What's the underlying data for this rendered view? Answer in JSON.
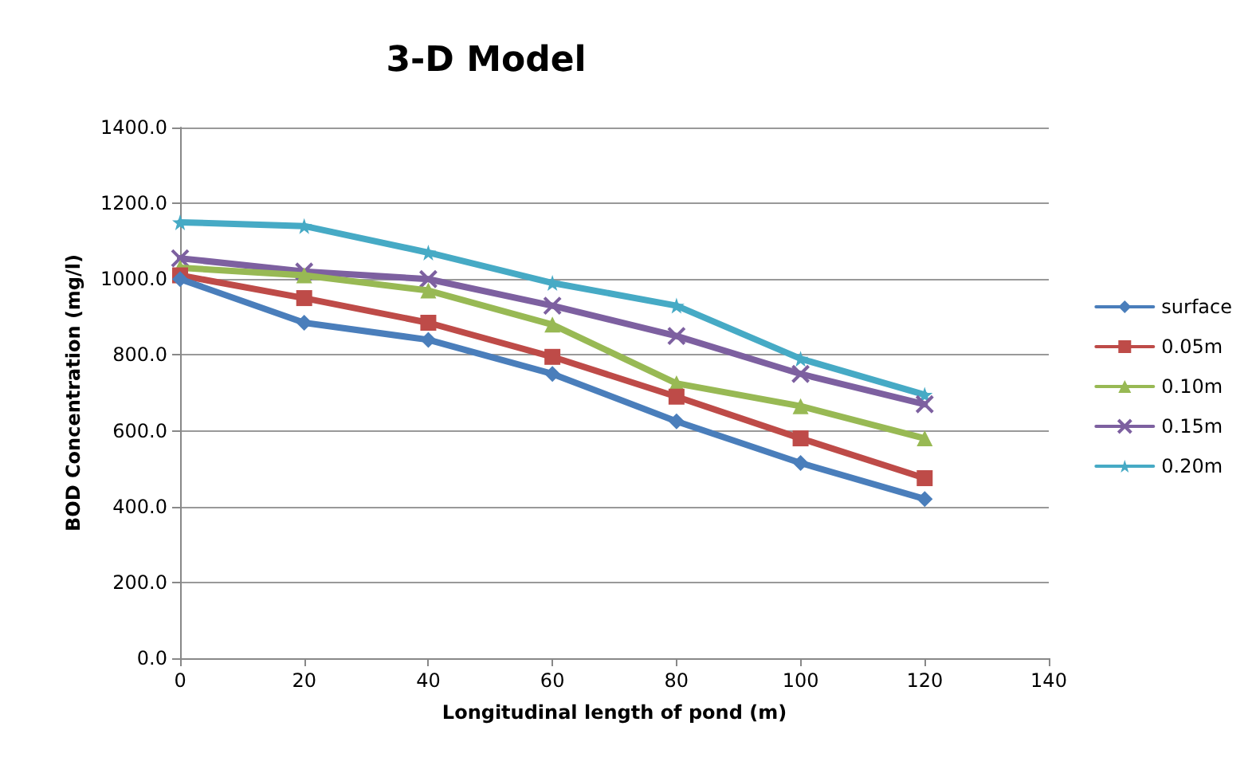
{
  "chart_data": {
    "type": "line",
    "title": "3-D Model",
    "xlabel": "Longitudinal length of pond (m)",
    "ylabel": "BOD Concentration (mg/l)",
    "x": [
      0,
      20,
      40,
      60,
      80,
      100,
      120
    ],
    "series": [
      {
        "name": "surface",
        "color": "#4a7ebb",
        "marker": "diamond",
        "values": [
          1000,
          885,
          840,
          750,
          625,
          515,
          420
        ]
      },
      {
        "name": "0.05m",
        "color": "#be4b48",
        "marker": "square",
        "values": [
          1010,
          950,
          885,
          795,
          690,
          580,
          475
        ]
      },
      {
        "name": "0.10m",
        "color": "#98b954",
        "marker": "triangle",
        "values": [
          1030,
          1010,
          970,
          880,
          725,
          665,
          580
        ]
      },
      {
        "name": "0.15m",
        "color": "#7d60a0",
        "marker": "cross",
        "values": [
          1055,
          1020,
          1000,
          930,
          850,
          750,
          670
        ]
      },
      {
        "name": "0.20m",
        "color": "#46aac5",
        "marker": "star",
        "values": [
          1150,
          1140,
          1070,
          990,
          930,
          790,
          695
        ]
      }
    ],
    "xlim": [
      0,
      140
    ],
    "xticks": [
      0,
      20,
      40,
      60,
      80,
      100,
      120,
      140
    ],
    "ylim": [
      0,
      1400
    ],
    "yticks": [
      {
        "value": 0,
        "label": "0.0"
      },
      {
        "value": 200,
        "label": "200.0"
      },
      {
        "value": 400,
        "label": "400.0"
      },
      {
        "value": 600,
        "label": "600.0"
      },
      {
        "value": 800,
        "label": "800.0"
      },
      {
        "value": 1000,
        "label": "1000.0"
      },
      {
        "value": 1200,
        "label": "1200.0"
      },
      {
        "value": 1400,
        "label": "1400.0"
      }
    ],
    "grid": "y",
    "legend": "right",
    "line_style": "solid"
  }
}
